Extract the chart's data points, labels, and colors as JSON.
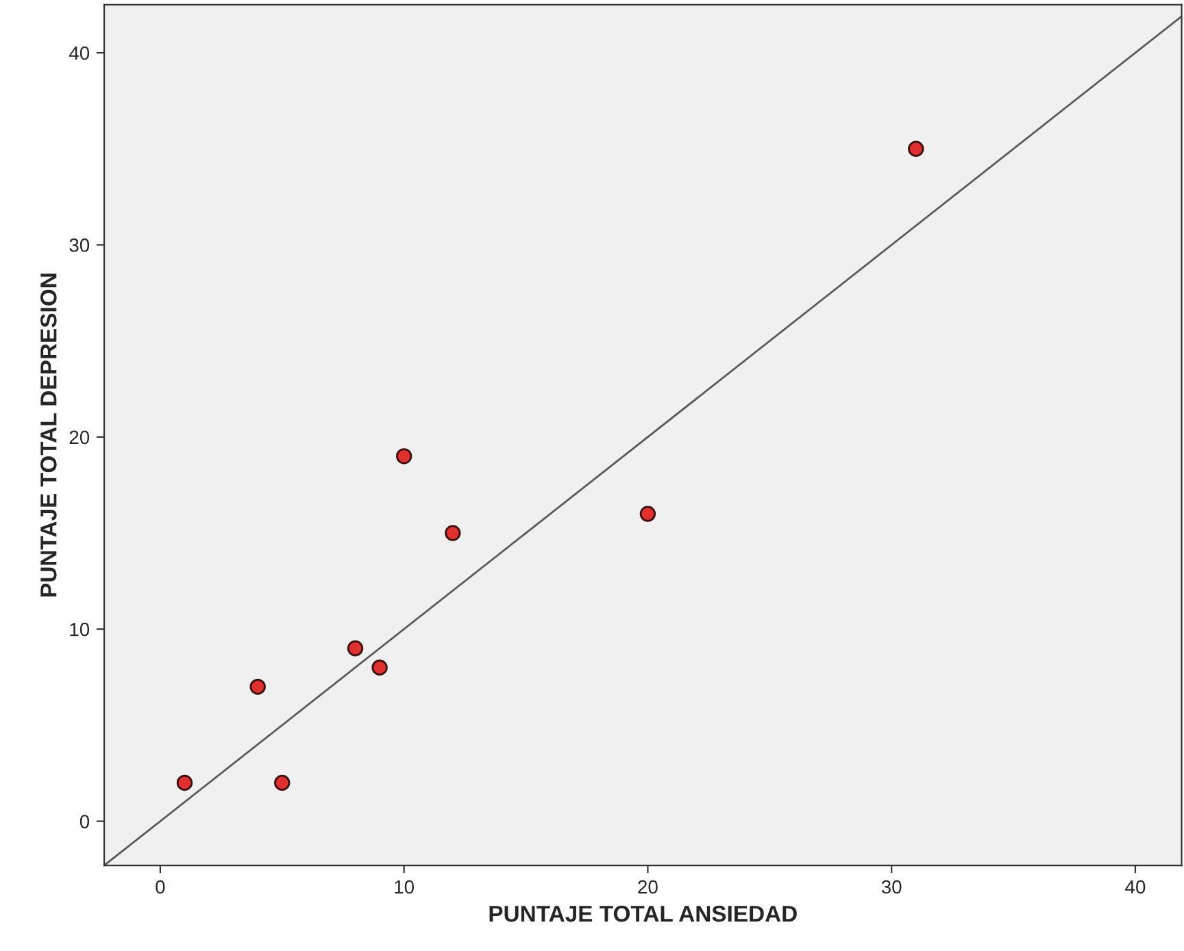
{
  "chart_data": {
    "type": "scatter",
    "xlabel": "PUNTAJE TOTAL ANSIEDAD",
    "ylabel": "PUNTAJE TOTAL DEPRESION",
    "series": [
      {
        "color": "#e0302f",
        "marker": "circle",
        "x": [
          1,
          4,
          5,
          8,
          9,
          10,
          12,
          20,
          31
        ],
        "values": [
          2,
          7,
          2,
          9,
          8,
          19,
          15,
          16,
          35
        ]
      },
      {
        "type": "line",
        "color": "#5a5a5a",
        "marker": "none",
        "line_style": "solid",
        "x": [
          -2.3,
          41.9
        ],
        "values": [
          -2.3,
          41.9
        ]
      }
    ],
    "xlim": [
      -2.3,
      41.9
    ],
    "ylim": [
      -2.3,
      42.5
    ],
    "xticks": [
      0,
      10,
      20,
      30,
      40
    ],
    "yticks": [
      0,
      10,
      20,
      30,
      40
    ],
    "grid": false
  }
}
